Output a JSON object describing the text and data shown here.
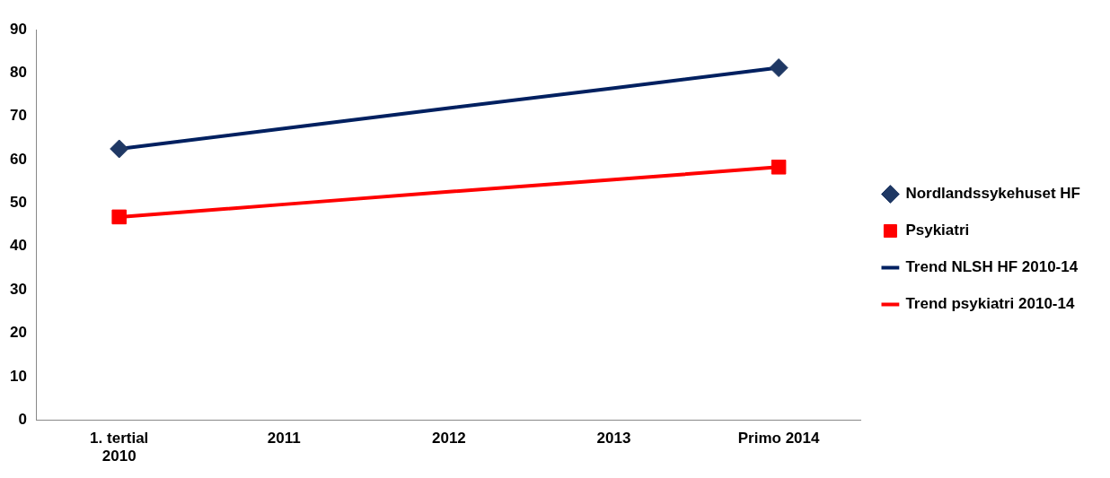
{
  "chart_data": {
    "type": "line",
    "categories": [
      "1. tertial 2010",
      "2011",
      "2012",
      "2013",
      "Primo 2014"
    ],
    "series": [
      {
        "name": "Nordlandssykehuset HF",
        "type": "scatter",
        "color": "#1f3864",
        "values": [
          62.5,
          null,
          null,
          null,
          81.2
        ],
        "marker": "diamond"
      },
      {
        "name": "Psykiatri",
        "type": "scatter",
        "color": "#ff0000",
        "values": [
          46.8,
          null,
          null,
          null,
          58.3
        ],
        "marker": "square"
      },
      {
        "name": "Trend NLSH HF 2010-14",
        "color": "#002060",
        "values": [
          62.5,
          67.2,
          71.9,
          76.5,
          81.2
        ],
        "marker": "none",
        "line_style": "solid"
      },
      {
        "name": "Trend psykiatri 2010-14",
        "color": "#ff0000",
        "values": [
          46.8,
          49.7,
          52.6,
          55.4,
          58.3
        ],
        "marker": "none",
        "line_style": "solid"
      }
    ],
    "ylim": [
      0,
      90
    ],
    "yticks": [
      0,
      10,
      20,
      30,
      40,
      50,
      60,
      70,
      80,
      90
    ],
    "grid": false,
    "legend": "right"
  }
}
